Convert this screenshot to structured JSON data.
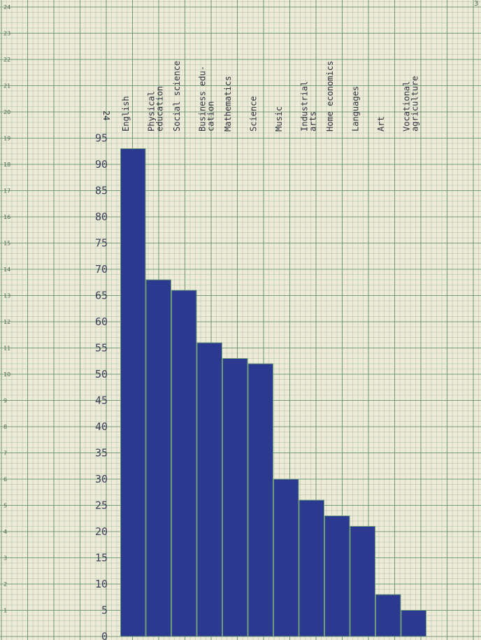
{
  "chart_data": {
    "type": "bar",
    "title": "",
    "xlabel": "",
    "ylabel": "",
    "categories": [
      [
        "English"
      ],
      [
        "Physical",
        "education"
      ],
      [
        "Social science"
      ],
      [
        "Business edu-",
        "cation"
      ],
      [
        "Mathematics"
      ],
      [
        "Science"
      ],
      [
        "Music"
      ],
      [
        "Industrial",
        "arts"
      ],
      [
        "Home economics"
      ],
      [
        "Languages"
      ],
      [
        "Art"
      ],
      [
        "Vocational",
        "agriculture"
      ]
    ],
    "values": [
      93,
      68,
      66,
      56,
      53,
      52,
      30,
      26,
      23,
      21,
      8,
      5
    ],
    "ylim": [
      0,
      95
    ],
    "yticks": [
      0,
      5,
      10,
      15,
      20,
      25,
      30,
      35,
      40,
      45,
      50,
      55,
      60,
      65,
      70,
      75,
      80,
      85,
      90,
      95
    ],
    "edge_ticks": [
      1,
      2,
      3,
      4,
      5,
      6,
      7,
      8,
      9,
      10,
      11,
      12,
      13,
      14,
      15,
      16,
      17,
      18,
      19,
      20,
      21,
      22,
      23,
      24
    ],
    "corner_label": "24",
    "page_mark": "3",
    "bar_color": "#2b3a8f",
    "grid": true,
    "grid_color": "#5f8f6a",
    "paper_color": "#eeecd9"
  }
}
